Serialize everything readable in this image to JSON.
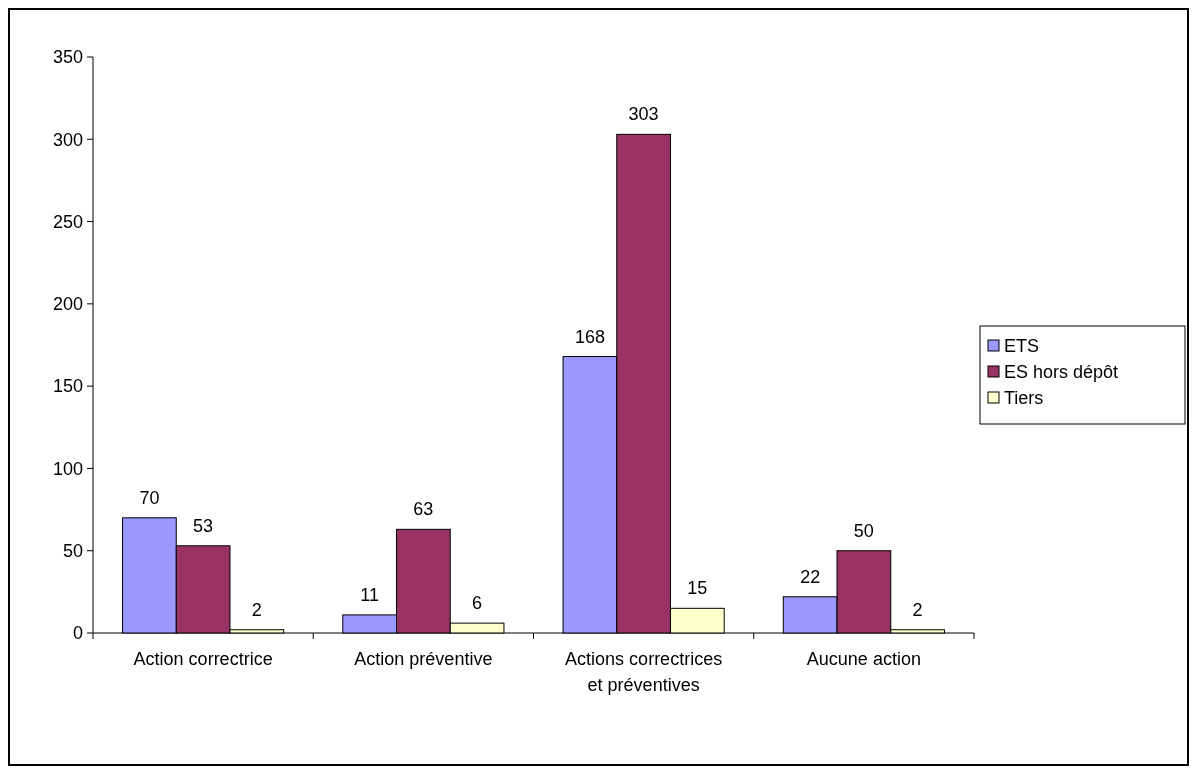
{
  "chart_data": {
    "type": "bar",
    "categories": [
      "Action correctrice",
      "Action préventive",
      "Actions correctrices et préventives",
      "Aucune action"
    ],
    "series": [
      {
        "name": "ETS",
        "color": "#9999ff",
        "values": [
          70,
          11,
          168,
          22
        ]
      },
      {
        "name": "ES hors dépôt",
        "color": "#993366",
        "values": [
          53,
          63,
          303,
          50
        ]
      },
      {
        "name": "Tiers",
        "color": "#ffffcc",
        "values": [
          2,
          6,
          15,
          2
        ]
      }
    ],
    "ylim": [
      0,
      350
    ],
    "yticks": [
      0,
      50,
      100,
      150,
      200,
      250,
      300,
      350
    ],
    "data_labels": true,
    "grid": false,
    "legend": "right"
  }
}
